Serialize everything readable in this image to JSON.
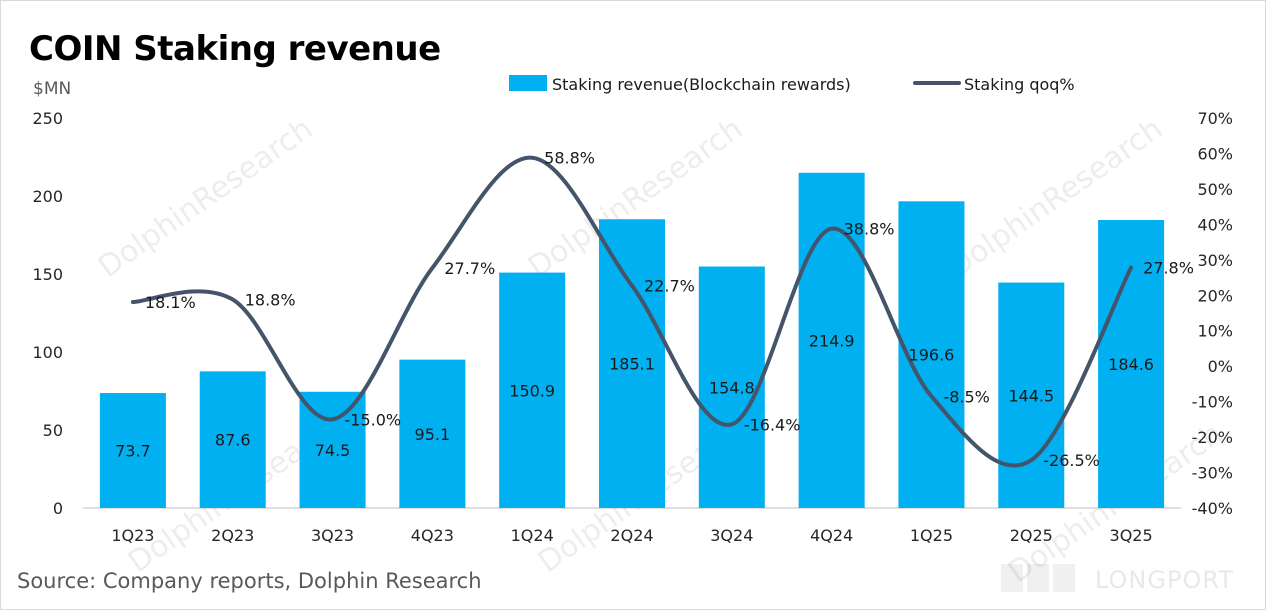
{
  "title": "COIN Staking revenue",
  "unit_label": "$MN",
  "source": "Source:  Company reports, Dolphin Research",
  "watermark": "DolphinResearch",
  "brand_mark": "LONGPORT",
  "colors": {
    "bar": "#00b0f0",
    "line": "#44546a",
    "axis": "#bfbfbf"
  },
  "chart_data": {
    "type": "bar+line",
    "categories": [
      "1Q23",
      "2Q23",
      "3Q23",
      "4Q23",
      "1Q24",
      "2Q24",
      "3Q24",
      "4Q24",
      "1Q25",
      "2Q25",
      "3Q25"
    ],
    "series": [
      {
        "name": "Staking revenue(Blockchain rewards)",
        "type": "bar",
        "axis": "left",
        "values": [
          73.7,
          87.6,
          74.5,
          95.1,
          150.9,
          185.1,
          154.8,
          214.9,
          196.6,
          144.5,
          184.6
        ],
        "labels": [
          "73.7",
          "87.6",
          "74.5",
          "95.1",
          "150.9",
          "185.1",
          "154.8",
          "214.9",
          "196.6",
          "144.5",
          "184.6"
        ]
      },
      {
        "name": "Staking qoq%",
        "type": "line",
        "axis": "right",
        "values": [
          18.1,
          18.8,
          -15.0,
          27.7,
          58.8,
          22.7,
          -16.4,
          38.8,
          -8.5,
          -26.5,
          27.8
        ],
        "labels": [
          "18.1%",
          "18.8%",
          "-15.0%",
          "27.7%",
          "58.8%",
          "22.7%",
          "-16.4%",
          "38.8%",
          "-8.5%",
          "-26.5%",
          "27.8%"
        ]
      }
    ],
    "y_left": {
      "range": [
        0,
        250
      ],
      "ticks": [
        "0",
        "50",
        "100",
        "150",
        "200",
        "250"
      ]
    },
    "y_right": {
      "range": [
        -40,
        70
      ],
      "ticks": [
        "-40%",
        "-30%",
        "-20%",
        "-10%",
        "0%",
        "10%",
        "20%",
        "30%",
        "40%",
        "50%",
        "60%",
        "70%"
      ]
    },
    "grid": false,
    "legend_position": "top-right",
    "smooth_line": true
  }
}
